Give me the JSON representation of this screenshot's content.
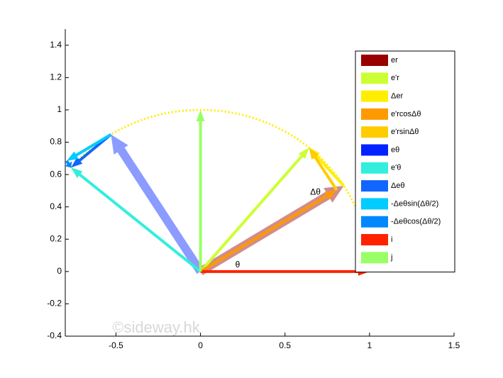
{
  "chart_data": {
    "type": "quiver",
    "xlim": [
      -0.8,
      1.5
    ],
    "ylim": [
      -0.4,
      1.5
    ],
    "xticks": [
      -0.5,
      0,
      0.5,
      1,
      1.5
    ],
    "yticks": [
      -0.4,
      -0.2,
      0,
      0.2,
      0.4,
      0.6,
      0.8,
      1,
      1.2,
      1.4
    ],
    "legend": "upper right",
    "series": [
      {
        "name": "er",
        "color": "#990000",
        "origin": [
          0,
          0
        ],
        "vector": [
          0.848,
          0.53
        ]
      },
      {
        "name": "e'r",
        "color": "#ccff33",
        "origin": [
          0,
          0
        ],
        "vector": [
          0.643,
          0.766
        ]
      },
      {
        "name": "Δer",
        "color": "#ffee00",
        "origin": [
          0.848,
          0.53
        ],
        "vector": [
          -0.205,
          0.236
        ]
      },
      {
        "name": "e'rcosΔθ",
        "color": "#ff9900",
        "origin": [
          0,
          0
        ],
        "vector": [
          0.806,
          0.504
        ]
      },
      {
        "name": "e'rsinΔθ",
        "color": "#ffcc00",
        "origin": [
          0.806,
          0.504
        ],
        "vector": [
          -0.164,
          0.262
        ]
      },
      {
        "name": "eθ",
        "color": "#0022ff",
        "origin": [
          0,
          0
        ],
        "vector": [
          -0.53,
          0.848
        ]
      },
      {
        "name": "e'θ",
        "color": "#33eedd",
        "origin": [
          0,
          0
        ],
        "vector": [
          -0.766,
          0.643
        ]
      },
      {
        "name": "Δeθ",
        "color": "#1166ff",
        "origin": [
          -0.53,
          0.848
        ],
        "vector": [
          -0.236,
          -0.205
        ]
      },
      {
        "name": "-Δeθsin(Δθ/2)",
        "color": "#00ccff",
        "origin": [
          -0.53,
          0.848
        ],
        "vector": [
          -0.262,
          -0.164
        ]
      },
      {
        "name": "-Δeθcos(Δθ/2)",
        "color": "#0088ff",
        "origin": [
          -0.792,
          0.684
        ],
        "vector": [
          0.026,
          -0.042
        ]
      },
      {
        "name": "i",
        "color": "#ff2200",
        "origin": [
          0,
          0
        ],
        "vector": [
          1,
          0
        ]
      },
      {
        "name": "j",
        "color": "#99ff66",
        "origin": [
          0,
          0
        ],
        "vector": [
          0,
          1
        ]
      }
    ],
    "annotations": [
      {
        "text": "θ",
        "x": 0.22,
        "y": 0.04
      },
      {
        "text": "Δθ",
        "x": 0.68,
        "y": 0.49
      }
    ],
    "watermark": "©sideway.hk"
  }
}
